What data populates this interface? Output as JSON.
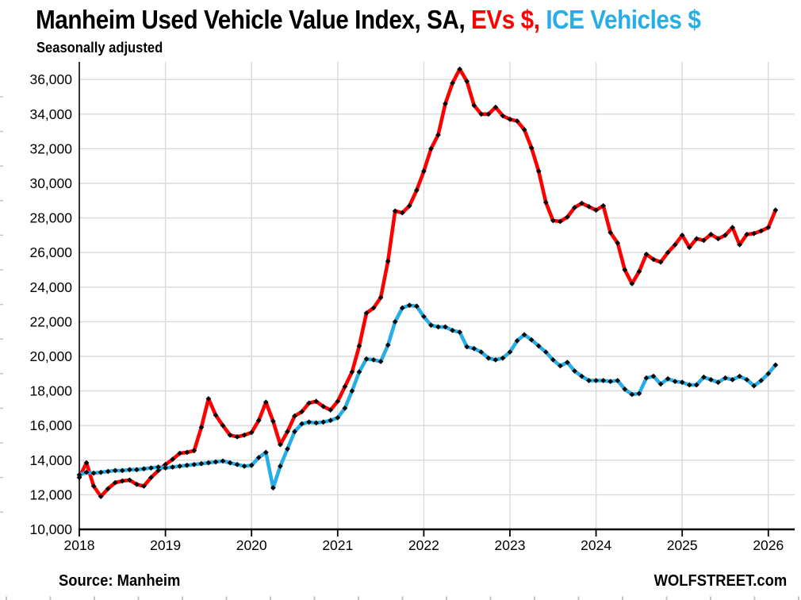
{
  "title": {
    "part1": "Manheim Used Vehicle Value Index, SA, ",
    "part2": "EVs $, ",
    "part3": "ICE Vehicles $"
  },
  "subtitle": "Seasonally adjusted",
  "footer": {
    "source": "Source: Manheim",
    "brand": "WOLFSTREET.com"
  },
  "colors": {
    "ev": "#fe0000",
    "ice": "#27aee6",
    "grid": "#d9d9d9",
    "axis": "#000000",
    "marker": "#0a0a0a",
    "crop_dash": "#c4c4c4"
  },
  "chart_data": {
    "type": "line",
    "title": "Manheim Used Vehicle Value Index, SA, EVs $, ICE Vehicles $",
    "subtitle": "Seasonally adjusted",
    "grid": true,
    "legend_position": "in-title",
    "marker_style": "small black diamond at each monthly point",
    "x": {
      "start": "2018-01",
      "end": "2026-02",
      "frequency": "monthly",
      "points": 98
    },
    "x_tick_labels": [
      "2018",
      "2019",
      "2020",
      "2021",
      "2022",
      "2023",
      "2024",
      "2025",
      "2026"
    ],
    "y_axis": {
      "min": 10000,
      "max": 37000,
      "major_unit": 2000,
      "tick_values": [
        10000,
        12000,
        14000,
        16000,
        18000,
        20000,
        22000,
        24000,
        26000,
        28000,
        30000,
        32000,
        34000,
        36000
      ],
      "tick_labels": [
        "10,000",
        "12,000",
        "14,000",
        "16,000",
        "18,000",
        "20,000",
        "22,000",
        "24,000",
        "26,000",
        "28,000",
        "30,000",
        "32,000",
        "34,000",
        "36,000"
      ]
    },
    "series": [
      {
        "name": "EVs $",
        "color_key": "ev",
        "values": [
          13000,
          13850,
          12500,
          11900,
          12350,
          12700,
          12800,
          12850,
          12600,
          12500,
          13000,
          13400,
          13750,
          14050,
          14400,
          14450,
          14550,
          15900,
          17550,
          16600,
          16000,
          15450,
          15350,
          15450,
          15600,
          16300,
          17350,
          16250,
          14900,
          15650,
          16550,
          16800,
          17300,
          17400,
          17100,
          16900,
          17400,
          18250,
          19100,
          20600,
          22500,
          22800,
          23400,
          25500,
          28400,
          28300,
          28700,
          29600,
          30700,
          32000,
          32800,
          34600,
          35800,
          36600,
          35900,
          34500,
          34000,
          34000,
          34400,
          33900,
          33700,
          33600,
          33100,
          32050,
          30700,
          28900,
          27850,
          27800,
          28050,
          28600,
          28850,
          28650,
          28450,
          28700,
          27150,
          26550,
          25000,
          24200,
          24900,
          25900,
          25600,
          25450,
          26000,
          26450,
          27000,
          26300,
          26800,
          26700,
          27050,
          26800,
          27000,
          27450,
          26450,
          27050,
          27100,
          27250,
          27450,
          28450
        ]
      },
      {
        "name": "ICE Vehicles $",
        "color_key": "ice",
        "values": [
          13150,
          13300,
          13250,
          13300,
          13350,
          13400,
          13400,
          13450,
          13450,
          13500,
          13550,
          13600,
          13550,
          13600,
          13650,
          13700,
          13750,
          13800,
          13850,
          13900,
          13950,
          13850,
          13750,
          13650,
          13700,
          14150,
          14450,
          12400,
          13650,
          14650,
          15650,
          16100,
          16200,
          16150,
          16200,
          16300,
          16450,
          17000,
          18000,
          19100,
          19850,
          19800,
          19700,
          20650,
          22000,
          22800,
          22950,
          22900,
          22300,
          21800,
          21700,
          21700,
          21500,
          21400,
          20550,
          20450,
          20250,
          19900,
          19800,
          19900,
          20250,
          20900,
          21250,
          20950,
          20600,
          20250,
          19800,
          19450,
          19650,
          19150,
          18850,
          18600,
          18600,
          18600,
          18550,
          18600,
          18100,
          17800,
          17850,
          18750,
          18850,
          18400,
          18700,
          18550,
          18500,
          18350,
          18350,
          18800,
          18650,
          18500,
          18750,
          18650,
          18850,
          18650,
          18300,
          18600,
          19000,
          19500
        ]
      }
    ]
  }
}
